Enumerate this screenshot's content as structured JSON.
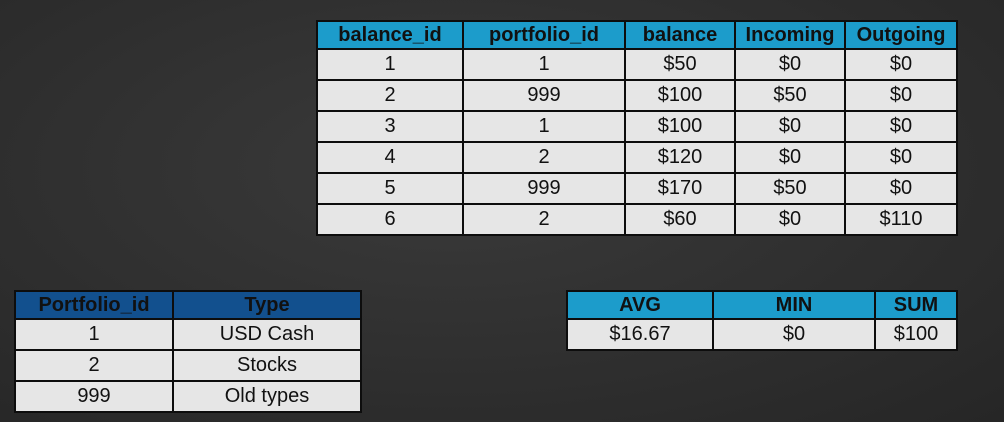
{
  "balance_table": {
    "headers": [
      "balance_id",
      "portfolio_id",
      "balance",
      "Incoming",
      "Outgoing"
    ],
    "rows": [
      [
        "1",
        "1",
        "$50",
        "$0",
        "$0"
      ],
      [
        "2",
        "999",
        "$100",
        "$50",
        "$0"
      ],
      [
        "3",
        "1",
        "$100",
        "$0",
        "$0"
      ],
      [
        "4",
        "2",
        "$120",
        "$0",
        "$0"
      ],
      [
        "5",
        "999",
        "$170",
        "$50",
        "$0"
      ],
      [
        "6",
        "2",
        "$60",
        "$0",
        "$110"
      ]
    ],
    "header_color": "#1c9ccb"
  },
  "portfolio_table": {
    "headers": [
      "Portfolio_id",
      "Type"
    ],
    "rows": [
      [
        "1",
        "USD Cash"
      ],
      [
        "2",
        "Stocks"
      ],
      [
        "999",
        "Old types"
      ]
    ],
    "header_color": "#12508e"
  },
  "stats_table": {
    "headers": [
      "AVG",
      "MIN",
      "SUM"
    ],
    "rows": [
      [
        "$16.67",
        "$0",
        "$100"
      ]
    ],
    "header_color": "#1c9ccb"
  },
  "cell_color": "#e6e6e6"
}
